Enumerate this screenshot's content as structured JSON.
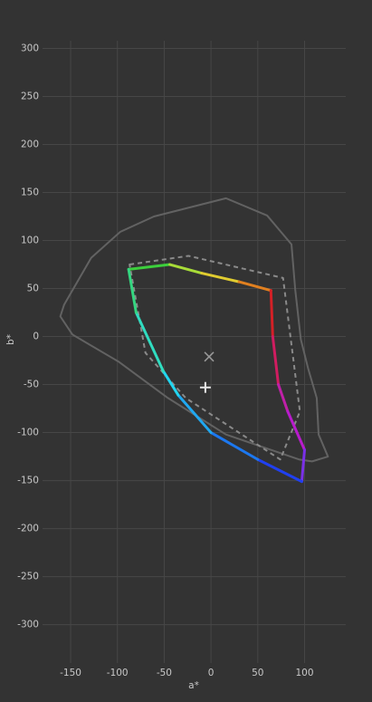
{
  "chart_data": {
    "type": "line",
    "xlabel": "a*",
    "ylabel": "b*",
    "xlim": [
      -180,
      144
    ],
    "ylim": [
      -340,
      308
    ],
    "xticks": [
      -150,
      -100,
      -50,
      0,
      50,
      100
    ],
    "yticks": [
      300,
      250,
      200,
      150,
      100,
      50,
      0,
      -50,
      -100,
      -150,
      -200,
      -250,
      -300
    ],
    "grid": true,
    "series": [
      {
        "style": "solid",
        "closed": true,
        "color": "#626262",
        "x": [
          -161,
          -157,
          -128,
          -97,
          -61,
          16,
          60,
          86,
          90,
          96,
          104,
          113,
          115,
          125,
          108,
          94,
          16,
          -46,
          -99,
          -148
        ],
        "values": [
          21,
          33,
          82,
          109,
          125,
          144,
          126,
          96,
          49,
          -3,
          -34,
          -64,
          -102,
          -125,
          -130,
          -128,
          -102,
          -64,
          -26,
          2
        ]
      },
      {
        "style": "dashed",
        "closed": true,
        "color": "#8a8a8a",
        "x": [
          -87,
          -24,
          77,
          95,
          74,
          -27,
          -70
        ],
        "values": [
          75,
          84,
          61,
          -78,
          -128,
          -64,
          -17
        ]
      },
      {
        "style": "gradient",
        "closed": true,
        "x": [
          -88,
          -44,
          -10,
          30,
          64,
          66,
          72,
          82,
          100,
          97,
          50,
          0,
          -35,
          -51,
          -80
        ],
        "values": [
          70,
          75,
          66,
          57,
          48,
          0,
          -50,
          -78,
          -118,
          -151,
          -128,
          -100,
          -61,
          -36,
          25
        ],
        "colors": [
          "#3ccf3c",
          "#a8dc38",
          "#e0cc30",
          "#e08020",
          "#d42026",
          "#d01c60",
          "#c020a8",
          "#b81ccc",
          "#7a30e8",
          "#2040f0",
          "#1c78f0",
          "#20a8f0",
          "#22d6f0",
          "#30dcc0",
          "#34d680"
        ]
      },
      {
        "style": "marker",
        "marker": "x",
        "color": "#9a9a9a",
        "x": [
          -2
        ],
        "values": [
          -21
        ]
      },
      {
        "style": "marker",
        "marker": "+",
        "color": "#e8e8e8",
        "x": [
          -6
        ],
        "values": [
          -53
        ]
      }
    ]
  }
}
